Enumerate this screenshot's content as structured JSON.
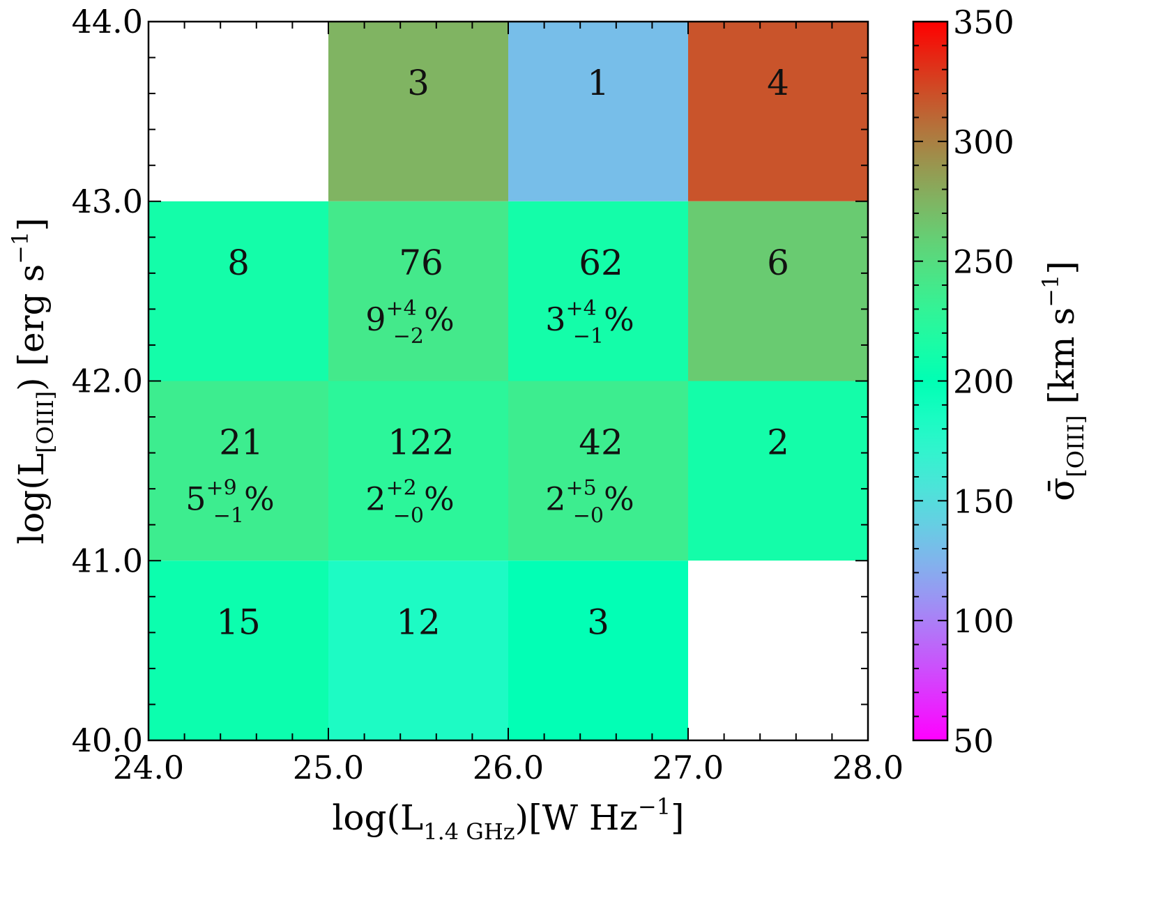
{
  "chart_data": {
    "type": "heatmap",
    "title": "",
    "xlabel": "log(L1.4 GHz)[W Hz−1]",
    "xlabel_parts": {
      "main": "log(L",
      "sub": "1.4 GHz",
      "tail": ")[W Hz",
      "sup": "−1",
      "end": "]"
    },
    "ylabel": "log(L[OIII]) [erg s−1]",
    "ylabel_parts": {
      "main": "log(L",
      "sub": "[OIII]",
      "tail": ") [erg s",
      "sup": "−1",
      "end": "]"
    },
    "colorbar_label": "σ̄[OIII] [km s−1]",
    "colorbar_label_parts": {
      "main": "σ̄",
      "sub": "[OIII]",
      "tail": " [km s",
      "sup": "−1",
      "end": "]"
    },
    "xlim": [
      24.0,
      28.0
    ],
    "ylim": [
      40.0,
      44.0
    ],
    "x_ticks": [
      "24.0",
      "25.0",
      "26.0",
      "27.0",
      "28.0"
    ],
    "y_ticks": [
      "40.0",
      "41.0",
      "42.0",
      "43.0",
      "44.0"
    ],
    "colorbar_range": [
      50,
      350
    ],
    "colorbar_ticks": [
      "50",
      "100",
      "150",
      "200",
      "250",
      "300",
      "350"
    ],
    "colormap": "rainbow",
    "bin_width": 1.0,
    "cells": [
      {
        "x0": 24,
        "y0": 43,
        "value": null,
        "count": null
      },
      {
        "x0": 25,
        "y0": 43,
        "value": 275,
        "count": "3"
      },
      {
        "x0": 26,
        "y0": 43,
        "value": 130,
        "count": "1"
      },
      {
        "x0": 27,
        "y0": 43,
        "value": 318,
        "count": "4"
      },
      {
        "x0": 24,
        "y0": 42,
        "value": 212,
        "count": "8"
      },
      {
        "x0": 25,
        "y0": 42,
        "value": 240,
        "count": "76",
        "pct": {
          "base": "9",
          "sup": "+4",
          "sub": "−2",
          "unit": "%"
        }
      },
      {
        "x0": 26,
        "y0": 42,
        "value": 212,
        "count": "62",
        "pct": {
          "base": "3",
          "sup": "+4",
          "sub": "−1",
          "unit": "%"
        }
      },
      {
        "x0": 27,
        "y0": 42,
        "value": 262,
        "count": "6"
      },
      {
        "x0": 24,
        "y0": 41,
        "value": 236,
        "count": "21",
        "pct": {
          "base": "5",
          "sup": "+9",
          "sub": "−1",
          "unit": "%"
        }
      },
      {
        "x0": 25,
        "y0": 41,
        "value": 226,
        "count": "122",
        "pct": {
          "base": "2",
          "sup": "+2",
          "sub": "−0",
          "unit": "%"
        }
      },
      {
        "x0": 26,
        "y0": 41,
        "value": 236,
        "count": "42",
        "pct": {
          "base": "2",
          "sup": "+5",
          "sub": "−0",
          "unit": "%"
        }
      },
      {
        "x0": 27,
        "y0": 41,
        "value": 212,
        "count": "2"
      },
      {
        "x0": 24,
        "y0": 40,
        "value": 207,
        "count": "15"
      },
      {
        "x0": 25,
        "y0": 40,
        "value": 183,
        "count": "12"
      },
      {
        "x0": 26,
        "y0": 40,
        "value": 199,
        "count": "3"
      },
      {
        "x0": 27,
        "y0": 40,
        "value": null,
        "count": null
      }
    ]
  }
}
